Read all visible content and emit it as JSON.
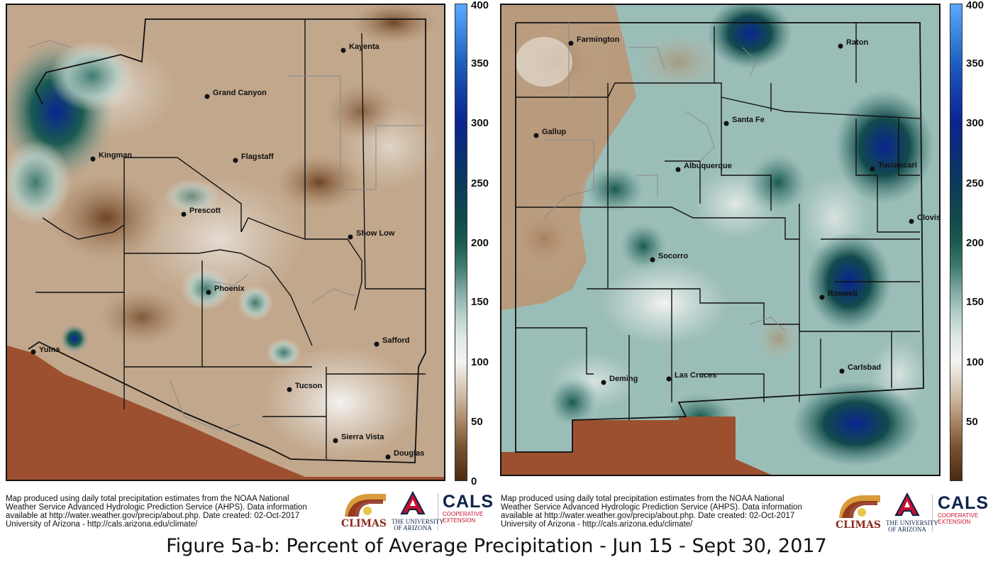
{
  "colorbar": {
    "ticks_left": [
      "400",
      "350",
      "300",
      "250",
      "200",
      "150",
      "100",
      "50",
      "0"
    ],
    "ticks_right": [
      "400",
      "350",
      "300",
      "250",
      "200",
      "150",
      "100",
      "50"
    ],
    "min": 0,
    "max": 400,
    "colors": {
      "dry": "#5a3418",
      "normal": "#f3f3f1",
      "wet": "#0a2590",
      "very_wet": "#5aa8ff",
      "outside": "#9c5030"
    }
  },
  "maps": {
    "arizona": {
      "cities": [
        "Kayenta",
        "Grand Canyon",
        "Kingman",
        "Flagstaff",
        "Prescott",
        "Show Low",
        "Phoenix",
        "Yuma",
        "Safford",
        "Tucson",
        "Sierra Vista",
        "Douglas"
      ]
    },
    "new_mexico": {
      "cities": [
        "Farmington",
        "Raton",
        "Santa Fe",
        "Gallup",
        "Albuquerque",
        "Tucumcari",
        "Clovis",
        "Socorro",
        "Roswell",
        "Deming",
        "Las Cruces",
        "Carlsbad"
      ]
    }
  },
  "caption": {
    "line1": "Map produced using daily total precipitation estimates from the NOAA National",
    "line2": "Weather Service Advanced Hydrologic Prediction Service (AHPS). Data information",
    "line3": "available at http://water.weather.gov/precip/about.php. Date created: 02-Oct-2017",
    "line4": "University of Arizona - http://cals.arizona.edu/climate/"
  },
  "logos": {
    "climas": "CLIMAS",
    "ua_line1": "THE UNIVERSITY",
    "ua_line2": "OF ARIZONA",
    "cals": "CALS",
    "cals_line1": "COOPERATIVE",
    "cals_line2": "EXTENSION"
  },
  "figure_title": "Figure 5a-b: Percent of Average Precipitation - Jun 15 - Sept 30, 2017"
}
